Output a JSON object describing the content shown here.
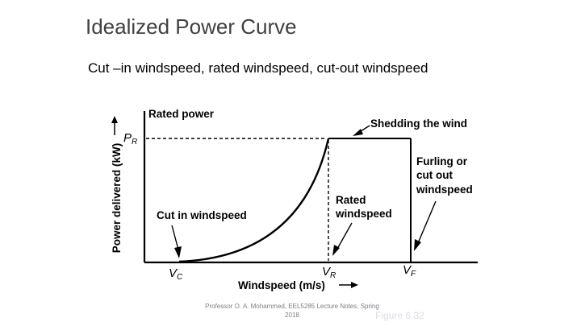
{
  "slide": {
    "title": "Idealized Power Curve",
    "subtitle": "Cut –in windspeed, rated windspeed, cut-out windspeed",
    "footer": "Professor O. A. Mohammed, EEL5285 Lecture Notes, Spring 2018",
    "figure_caption": "Figure 6.32"
  },
  "diagram": {
    "y_axis_label": "Power delivered (kW)",
    "x_axis_label": "Windspeed (m/s)",
    "rated_power_label": "Rated power",
    "pr_symbol": "P",
    "pr_sub": "R",
    "vc_symbol": "V",
    "vc_sub": "C",
    "vr_symbol": "V",
    "vr_sub": "R",
    "vf_symbol": "V",
    "vf_sub": "F",
    "cut_in_label": "Cut in windspeed",
    "rated_windspeed_label": [
      "Rated",
      "windspeed"
    ],
    "shedding_label": "Shedding the wind",
    "furling_label": [
      "Furling or",
      "cut out",
      "windspeed"
    ]
  }
}
